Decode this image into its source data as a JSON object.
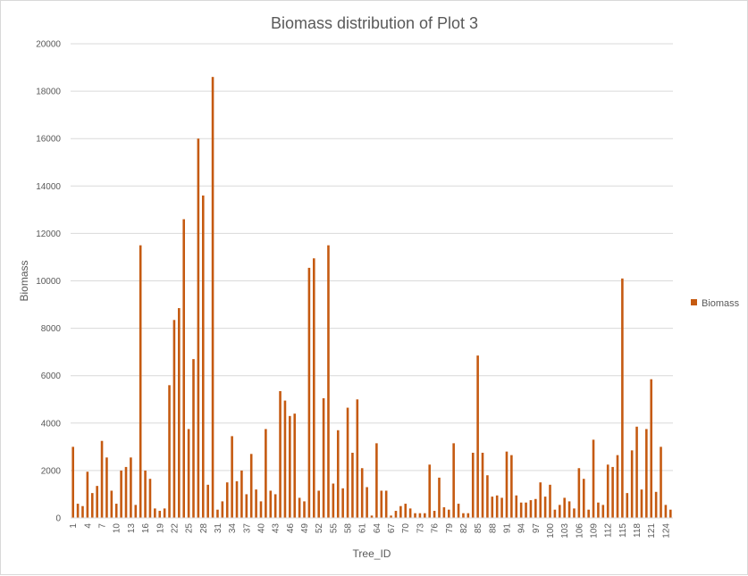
{
  "chart_data": {
    "type": "bar",
    "title": "Biomass distribution of Plot 3",
    "xlabel": "Tree_ID",
    "ylabel": "Biomass",
    "ylim": [
      0,
      20000
    ],
    "yticks": [
      0,
      2000,
      4000,
      6000,
      8000,
      10000,
      12000,
      14000,
      16000,
      18000,
      20000
    ],
    "grid": true,
    "legend_position": "right",
    "bar_color": "#c55a11",
    "x_tick_labels_shown": [
      "1",
      "4",
      "7",
      "10",
      "13",
      "16",
      "19",
      "22",
      "25",
      "28",
      "31",
      "34",
      "37",
      "40",
      "43",
      "46",
      "49",
      "52",
      "55",
      "58",
      "61",
      "64",
      "67",
      "70",
      "73",
      "76",
      "79",
      "82",
      "85",
      "88",
      "91",
      "94",
      "97",
      "100",
      "103",
      "106",
      "109",
      "112",
      "115",
      "118",
      "121",
      "124"
    ],
    "series": [
      {
        "name": "Biomass",
        "values": [
          3000,
          600,
          500,
          1950,
          1050,
          1350,
          3250,
          2550,
          1150,
          600,
          2000,
          2150,
          2550,
          550,
          11500,
          2000,
          1650,
          400,
          300,
          400,
          5600,
          8350,
          8850,
          12600,
          3750,
          6700,
          16000,
          13600,
          1400,
          18600,
          350,
          700,
          1500,
          3450,
          1550,
          2000,
          1000,
          2700,
          1200,
          700,
          3750,
          1150,
          1000,
          5350,
          4950,
          4300,
          4400,
          850,
          700,
          10550,
          10950,
          1150,
          5050,
          11500,
          1450,
          3700,
          1250,
          4650,
          2750,
          5000,
          2100,
          1300,
          100,
          3150,
          1150,
          1150,
          100,
          300,
          500,
          600,
          400,
          200,
          200,
          200,
          2250,
          300,
          1700,
          450,
          350,
          3150,
          600,
          200,
          200,
          2750,
          6850,
          2750,
          1800,
          900,
          950,
          850,
          2800,
          2650,
          950,
          650,
          650,
          750,
          800,
          1500,
          900,
          1400,
          350,
          550,
          850,
          700,
          400,
          2100,
          1650,
          350,
          3300,
          650,
          550,
          2250,
          2150,
          2650,
          10100,
          1050,
          2850,
          3850,
          1200,
          3750,
          5850,
          1100,
          3000,
          550,
          350
        ]
      }
    ]
  }
}
